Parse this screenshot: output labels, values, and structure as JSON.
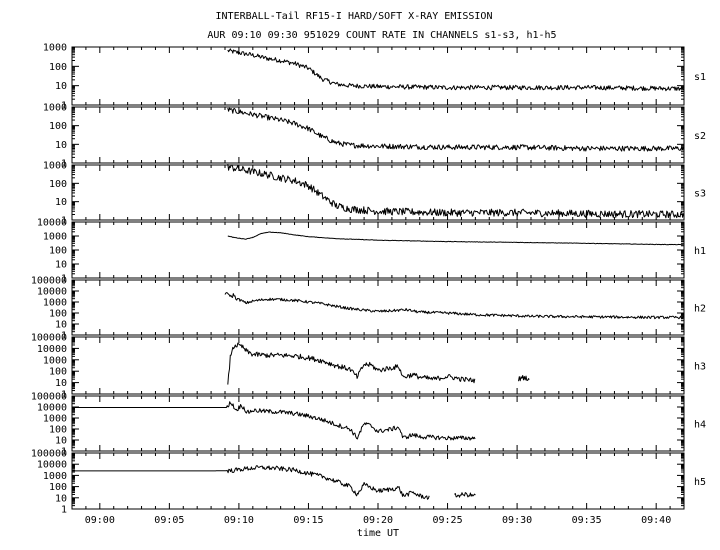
{
  "chart_data": {
    "type": "line",
    "title": "INTERBALL-Tail RF15-I HARD/SOFT X-RAY EMISSION",
    "subtitle": "AUR 09:10 09:30 951029  COUNT RATE IN CHANNELS s1-s3, h1-h5",
    "xlabel": "time UT",
    "x_range_minutes": [
      -2,
      42
    ],
    "x_ticks": [
      {
        "minute": 0,
        "label": "09:00"
      },
      {
        "minute": 5,
        "label": "09:05"
      },
      {
        "minute": 10,
        "label": "09:10"
      },
      {
        "minute": 15,
        "label": "09:15"
      },
      {
        "minute": 20,
        "label": "09:20"
      },
      {
        "minute": 25,
        "label": "09:25"
      },
      {
        "minute": 30,
        "label": "09:30"
      },
      {
        "minute": 35,
        "label": "09:35"
      },
      {
        "minute": 40,
        "label": "09:40"
      }
    ],
    "y_scale": "log",
    "panels": [
      {
        "name": "s1",
        "ylim": [
          1,
          1000
        ],
        "y_ticks": [
          "1",
          "10",
          "100",
          "1000"
        ],
        "noise": 0.12,
        "points": [
          [
            9.2,
            650
          ],
          [
            10,
            500
          ],
          [
            11,
            380
          ],
          [
            12,
            260
          ],
          [
            13,
            200
          ],
          [
            14,
            140
          ],
          [
            15,
            80
          ],
          [
            16,
            22
          ],
          [
            17,
            12
          ],
          [
            18,
            10
          ],
          [
            20,
            9
          ],
          [
            25,
            8
          ],
          [
            30,
            8
          ],
          [
            35,
            8
          ],
          [
            42,
            7
          ]
        ]
      },
      {
        "name": "s2",
        "ylim": [
          1,
          1000
        ],
        "y_ticks": [
          "1",
          "10",
          "100",
          "1000"
        ],
        "noise": 0.14,
        "points": [
          [
            9.2,
            700
          ],
          [
            10,
            550
          ],
          [
            11,
            400
          ],
          [
            12,
            280
          ],
          [
            13,
            200
          ],
          [
            14,
            130
          ],
          [
            15,
            70
          ],
          [
            16,
            25
          ],
          [
            17,
            12
          ],
          [
            18,
            9
          ],
          [
            20,
            8
          ],
          [
            25,
            7
          ],
          [
            30,
            7
          ],
          [
            35,
            6
          ],
          [
            42,
            6
          ]
        ]
      },
      {
        "name": "s3",
        "ylim": [
          1,
          1000
        ],
        "y_ticks": [
          "1",
          "10",
          "100",
          "1000"
        ],
        "noise": 0.2,
        "points": [
          [
            9.2,
            800
          ],
          [
            10,
            600
          ],
          [
            11,
            430
          ],
          [
            12,
            300
          ],
          [
            13,
            200
          ],
          [
            14,
            140
          ],
          [
            15,
            75
          ],
          [
            16,
            20
          ],
          [
            17,
            6
          ],
          [
            18,
            4
          ],
          [
            20,
            3
          ],
          [
            25,
            2.5
          ],
          [
            30,
            2.5
          ],
          [
            35,
            2.2
          ],
          [
            42,
            2
          ]
        ]
      },
      {
        "name": "h1",
        "ylim": [
          1,
          10000
        ],
        "y_ticks": [
          "1",
          "10",
          "100",
          "1000",
          "10000"
        ],
        "noise": 0.015,
        "points": [
          [
            9.2,
            1000
          ],
          [
            9.6,
            800
          ],
          [
            10,
            700
          ],
          [
            10.5,
            600
          ],
          [
            11,
            800
          ],
          [
            11.6,
            1500
          ],
          [
            12.2,
            1900
          ],
          [
            13,
            1700
          ],
          [
            14,
            1200
          ],
          [
            15,
            900
          ],
          [
            17,
            650
          ],
          [
            20,
            500
          ],
          [
            25,
            400
          ],
          [
            30,
            350
          ],
          [
            35,
            300
          ],
          [
            40,
            250
          ],
          [
            42,
            240
          ]
        ]
      },
      {
        "name": "h2",
        "ylim": [
          1,
          100000
        ],
        "y_ticks": [
          "1",
          "10",
          "100",
          "1000",
          "10000",
          "100000"
        ],
        "noise": 0.12,
        "points": [
          [
            9,
            6000
          ],
          [
            9.3,
            5000
          ],
          [
            9.5,
            2500
          ],
          [
            9.6,
            5000
          ],
          [
            9.8,
            2000
          ],
          [
            10.1,
            1500
          ],
          [
            10.5,
            800
          ],
          [
            11,
            1200
          ],
          [
            12,
            1800
          ],
          [
            13,
            1700
          ],
          [
            14,
            1400
          ],
          [
            15,
            1000
          ],
          [
            16,
            700
          ],
          [
            17,
            400
          ],
          [
            18,
            250
          ],
          [
            19,
            180
          ],
          [
            20,
            140
          ],
          [
            21,
            160
          ],
          [
            22,
            200
          ],
          [
            23,
            120
          ],
          [
            25,
            100
          ],
          [
            27,
            70
          ],
          [
            29,
            60
          ],
          [
            31,
            50
          ],
          [
            35,
            45
          ],
          [
            40,
            40
          ],
          [
            42,
            40
          ]
        ]
      },
      {
        "name": "h3",
        "ylim": [
          1,
          100000
        ],
        "y_ticks": [
          "1",
          "10",
          "100",
          "1000",
          "10000",
          "100000"
        ],
        "noise": 0.22,
        "segments": [
          [
            [
              9.2,
              5
            ],
            [
              9.4,
              3000
            ],
            [
              9.7,
              20000
            ],
            [
              10.2,
              15000
            ],
            [
              10.6,
              5000
            ],
            [
              11,
              3000
            ],
            [
              12,
              2500
            ],
            [
              13,
              2500
            ],
            [
              14,
              2200
            ],
            [
              15,
              1500
            ],
            [
              16,
              800
            ],
            [
              17,
              300
            ],
            [
              18,
              150
            ],
            [
              18.5,
              30
            ],
            [
              19,
              400
            ],
            [
              19.5,
              350
            ],
            [
              20,
              120
            ],
            [
              21,
              200
            ],
            [
              21.5,
              250
            ],
            [
              21.8,
              30
            ],
            [
              22.5,
              50
            ],
            [
              23,
              30
            ],
            [
              24,
              20
            ],
            [
              25,
              35
            ],
            [
              26,
              20
            ],
            [
              27,
              15
            ]
          ],
          [
            [
              30.1,
              20
            ],
            [
              30.5,
              30
            ],
            [
              30.9,
              20
            ]
          ]
        ]
      },
      {
        "name": "h4",
        "ylim": [
          1,
          100000
        ],
        "y_ticks": [
          "1",
          "10",
          "100",
          "1000",
          "10000",
          "100000"
        ],
        "noise": 0.2,
        "points": [
          [
            -2,
            9000
          ],
          [
            3,
            9000
          ],
          [
            8,
            9000
          ],
          [
            9.2,
            9000
          ],
          [
            9.4,
            30000
          ],
          [
            9.8,
            5000
          ],
          [
            10.2,
            15000
          ],
          [
            10.6,
            3000
          ],
          [
            11,
            5000
          ],
          [
            12,
            4000
          ],
          [
            13,
            3500
          ],
          [
            14,
            2500
          ],
          [
            15,
            1500
          ],
          [
            16,
            700
          ],
          [
            17,
            250
          ],
          [
            18,
            100
          ],
          [
            18.5,
            15
          ],
          [
            19,
            300
          ],
          [
            19.5,
            200
          ],
          [
            20,
            60
          ],
          [
            21,
            100
          ],
          [
            21.5,
            150
          ],
          [
            21.8,
            15
          ],
          [
            22.5,
            30
          ],
          [
            23,
            20
          ],
          [
            25,
            15
          ],
          [
            27,
            15
          ]
        ]
      },
      {
        "name": "h5",
        "ylim": [
          1,
          100000
        ],
        "y_ticks": [
          "1",
          "10",
          "100",
          "1000",
          "10000",
          "100000"
        ],
        "noise": 0.2,
        "segments": [
          [
            [
              -2,
              2500
            ],
            [
              3,
              2500
            ],
            [
              8,
              2500
            ],
            [
              9.5,
              2700
            ],
            [
              10.5,
              4000
            ],
            [
              11.5,
              5000
            ],
            [
              12.5,
              4500
            ],
            [
              14,
              3000
            ],
            [
              15,
              1500
            ],
            [
              16,
              800
            ],
            [
              17,
              300
            ],
            [
              18,
              100
            ],
            [
              18.5,
              20
            ],
            [
              19,
              150
            ],
            [
              19.5,
              80
            ],
            [
              20,
              40
            ],
            [
              21,
              60
            ],
            [
              21.5,
              80
            ],
            [
              21.8,
              15
            ],
            [
              22.5,
              30
            ],
            [
              23,
              15
            ],
            [
              23.7,
              10
            ]
          ],
          [
            [
              25.5,
              15
            ],
            [
              26.3,
              20
            ],
            [
              27,
              15
            ]
          ]
        ]
      }
    ]
  }
}
